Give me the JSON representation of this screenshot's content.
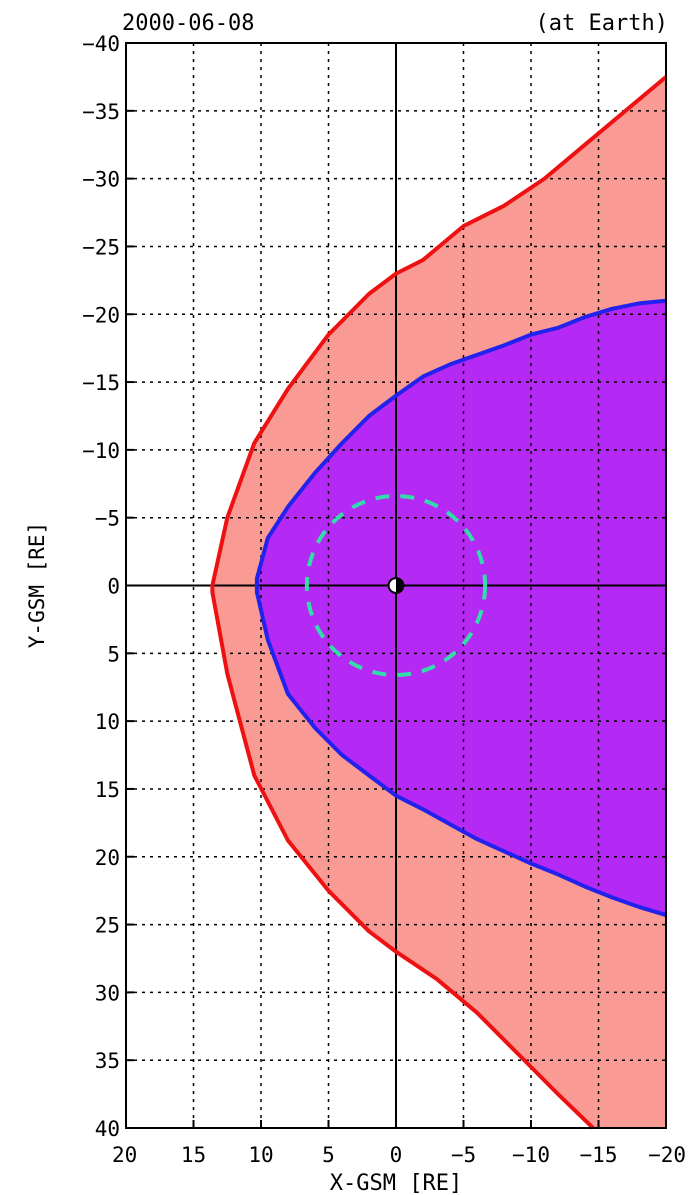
{
  "header": {
    "date": "2000-06-08",
    "location": "(at Earth)"
  },
  "colors": {
    "bow_shock_line": "#ee1111",
    "bow_shock_fill": "#fa9a94",
    "magnetopause_line": "#2222ee",
    "magnetopause_fill": "#b529f5",
    "geosync_orbit": "#33ddaa",
    "grid": "#000000"
  },
  "chart_data": {
    "type": "area",
    "xlabel": "X-GSM [RE]",
    "ylabel": "Y-GSM [RE]",
    "xlim": [
      20,
      -20
    ],
    "ylim": [
      -40,
      40
    ],
    "x_ticks": [
      20,
      15,
      10,
      5,
      0,
      -5,
      -10,
      -15,
      -20
    ],
    "x_tick_labels": [
      "20",
      "15",
      "10",
      "5",
      "0",
      "−5",
      "−10",
      "−15",
      "−20"
    ],
    "y_ticks": [
      -40,
      -35,
      -30,
      -25,
      -20,
      -15,
      -10,
      -5,
      0,
      5,
      10,
      15,
      20,
      25,
      30,
      35,
      40
    ],
    "y_tick_labels": [
      "−40",
      "−35",
      "−30",
      "−25",
      "−20",
      "−15",
      "−10",
      "−5",
      "0",
      "5",
      "10",
      "15",
      "20",
      "25",
      "30",
      "35",
      "40"
    ],
    "grid": true,
    "series": [
      {
        "kind": "bow_shock",
        "x": [
          -20,
          -17,
          -14,
          -11,
          -8,
          -5,
          -2,
          0,
          2,
          5,
          8,
          10.5,
          12.5,
          13.6,
          13.6,
          12.5,
          10.5,
          8,
          5,
          2,
          0,
          -3,
          -6,
          -9,
          -12,
          -14.6
        ],
        "y": [
          -37.5,
          -35,
          -32.5,
          -30,
          -28,
          -26.5,
          -24,
          -23,
          -21.5,
          -18.5,
          -14.5,
          -10.5,
          -5,
          0,
          0.5,
          6.5,
          14,
          18.8,
          22.5,
          25.5,
          27,
          29,
          31.5,
          34.5,
          37.5,
          40
        ]
      },
      {
        "kind": "magnetopause",
        "x": [
          -20,
          -18,
          -16,
          -14,
          -12,
          -10,
          -8,
          -6,
          -4,
          -2,
          0,
          2,
          4,
          6,
          8,
          9.5,
          10.3,
          10.3,
          9.5,
          8,
          6,
          4,
          2,
          0,
          -2,
          -4,
          -6,
          -8,
          -10,
          -12,
          -14,
          -16,
          -18,
          -20
        ],
        "y": [
          -21,
          -20.8,
          -20.4,
          -19.8,
          -19,
          -18.5,
          -17.7,
          -17,
          -16.3,
          -15.4,
          -14,
          -12.5,
          -10.5,
          -8.3,
          -5.8,
          -3.5,
          -0.5,
          0.5,
          4,
          8,
          10.5,
          12.5,
          14,
          15.5,
          16.5,
          17.6,
          18.7,
          19.6,
          20.5,
          21.3,
          22.2,
          23,
          23.7,
          24.3
        ]
      },
      {
        "kind": "geosynchronous_orbit",
        "radius": 6.6
      },
      {
        "kind": "earth",
        "radius": 0.55
      }
    ]
  }
}
